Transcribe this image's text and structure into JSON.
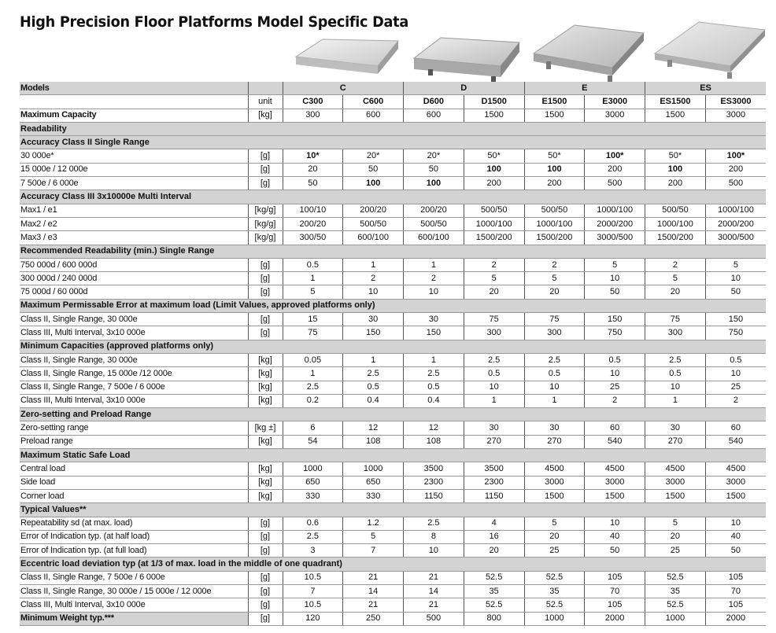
{
  "title": "High Precision Floor Platforms Model Specific Data",
  "header": {
    "models_label": "Models",
    "groups": [
      "C",
      "D",
      "E",
      "ES"
    ],
    "unit_label": "unit",
    "models": [
      "C300",
      "C600",
      "D600",
      "D1500",
      "E1500",
      "E3000",
      "ES1500",
      "ES3000"
    ]
  },
  "max_capacity": {
    "label": "Maximum Capacity",
    "unit": "[kg]",
    "values": [
      "300",
      "600",
      "600",
      "1500",
      "1500",
      "3000",
      "1500",
      "3000"
    ]
  },
  "sections": [
    {
      "heading": "Readability",
      "rows": []
    },
    {
      "heading": "Accuracy Class II Single Range",
      "rows": [
        {
          "label": "30 000e*",
          "unit": "[g]",
          "values": [
            "10*",
            "20*",
            "20*",
            "50*",
            "50*",
            "100*",
            "50*",
            "100*"
          ],
          "bold": [
            true,
            false,
            false,
            false,
            false,
            true,
            false,
            true
          ]
        },
        {
          "label": "15 000e / 12 000e",
          "unit": "[g]",
          "values": [
            "20",
            "50",
            "50",
            "100",
            "100",
            "200",
            "100",
            "200"
          ],
          "bold": [
            false,
            false,
            false,
            true,
            true,
            false,
            true,
            false
          ]
        },
        {
          "label": "7 500e / 6 000e",
          "unit": "[g]",
          "values": [
            "50",
            "100",
            "100",
            "200",
            "200",
            "500",
            "200",
            "500"
          ],
          "bold": [
            false,
            true,
            true,
            false,
            false,
            false,
            false,
            false
          ]
        }
      ]
    },
    {
      "heading": "Accuracy Class III 3x10000e Multi Interval",
      "rows": [
        {
          "label": "Max1 / e1",
          "unit": "[kg/g]",
          "values": [
            "100/10",
            "200/20",
            "200/20",
            "500/50",
            "500/50",
            "1000/100",
            "500/50",
            "1000/100"
          ]
        },
        {
          "label": "Max2 / e2",
          "unit": "[kg/g]",
          "values": [
            "200/20",
            "500/50",
            "500/50",
            "1000/100",
            "1000/100",
            "2000/200",
            "1000/100",
            "2000/200"
          ]
        },
        {
          "label": "Max3 / e3",
          "unit": "[kg/g]",
          "values": [
            "300/50",
            "600/100",
            "600/100",
            "1500/200",
            "1500/200",
            "3000/500",
            "1500/200",
            "3000/500"
          ]
        }
      ]
    },
    {
      "heading": "Recommended Readability (min.) Single Range",
      "rows": [
        {
          "label": "750 000d / 600 000d",
          "unit": "[g]",
          "values": [
            "0.5",
            "1",
            "1",
            "2",
            "2",
            "5",
            "2",
            "5"
          ]
        },
        {
          "label": "300 000d / 240 000d",
          "unit": "[g]",
          "values": [
            "1",
            "2",
            "2",
            "5",
            "5",
            "10",
            "5",
            "10"
          ]
        },
        {
          "label": "75 000d / 60 000d",
          "unit": "[g]",
          "values": [
            "5",
            "10",
            "10",
            "20",
            "20",
            "50",
            "20",
            "50"
          ]
        }
      ]
    },
    {
      "heading": "Maximum Permissable Error at maximum load (Limit Values, approved platforms only)",
      "rows": [
        {
          "label": "Class II, Single Range, 30 000e",
          "unit": "[g]",
          "values": [
            "15",
            "30",
            "30",
            "75",
            "75",
            "150",
            "75",
            "150"
          ]
        },
        {
          "label": "Class III, Multi Interval, 3x10 000e",
          "unit": "[g]",
          "values": [
            "75",
            "150",
            "150",
            "300",
            "300",
            "750",
            "300",
            "750"
          ]
        }
      ]
    },
    {
      "heading": "Minimum Capacities (approved platforms only)",
      "rows": [
        {
          "label": "Class II, Single Range, 30 000e",
          "unit": "[kg]",
          "values": [
            "0.05",
            "1",
            "1",
            "2.5",
            "2.5",
            "0.5",
            "2.5",
            "0.5"
          ]
        },
        {
          "label": "Class II, Single Range, 15 000e /12 000e",
          "unit": "[kg]",
          "values": [
            "1",
            "2.5",
            "2.5",
            "0.5",
            "0.5",
            "10",
            "0.5",
            "10"
          ]
        },
        {
          "label": "Class II, Single Range, 7 500e / 6 000e",
          "unit": "[kg]",
          "values": [
            "2.5",
            "0.5",
            "0.5",
            "10",
            "10",
            "25",
            "10",
            "25"
          ]
        },
        {
          "label": "Class III, Multi Interval, 3x10 000e",
          "unit": "[kg]",
          "values": [
            "0.2",
            "0.4",
            "0.4",
            "1",
            "1",
            "2",
            "1",
            "2"
          ]
        }
      ]
    },
    {
      "heading": "Zero-setting and Preload Range",
      "rows": [
        {
          "label": "Zero-setting range",
          "unit": "[kg ±]",
          "values": [
            "6",
            "12",
            "12",
            "30",
            "30",
            "60",
            "30",
            "60"
          ]
        },
        {
          "label": "Preload range",
          "unit": "[kg]",
          "values": [
            "54",
            "108",
            "108",
            "270",
            "270",
            "540",
            "270",
            "540"
          ]
        }
      ]
    },
    {
      "heading": "Maximum Static Safe Load",
      "rows": [
        {
          "label": "Central load",
          "unit": "[kg]",
          "values": [
            "1000",
            "1000",
            "3500",
            "3500",
            "4500",
            "4500",
            "4500",
            "4500"
          ]
        },
        {
          "label": "Side load",
          "unit": "[kg]",
          "values": [
            "650",
            "650",
            "2300",
            "2300",
            "3000",
            "3000",
            "3000",
            "3000"
          ]
        },
        {
          "label": "Corner load",
          "unit": "[kg]",
          "values": [
            "330",
            "330",
            "1150",
            "1150",
            "1500",
            "1500",
            "1500",
            "1500"
          ]
        }
      ]
    },
    {
      "heading": "Typical Values**",
      "rows": [
        {
          "label": "Repeatability sd (at max. load)",
          "unit": "[g]",
          "values": [
            "0.6",
            "1.2",
            "2.5",
            "4",
            "5",
            "10",
            "5",
            "10"
          ]
        },
        {
          "label": "Error of Indication typ. (at half load)",
          "unit": "[g]",
          "values": [
            "2.5",
            "5",
            "8",
            "16",
            "20",
            "40",
            "20",
            "40"
          ]
        },
        {
          "label": "Error of Indication typ. (at full load)",
          "unit": "[g]",
          "values": [
            "3",
            "7",
            "10",
            "20",
            "25",
            "50",
            "25",
            "50"
          ]
        }
      ]
    },
    {
      "heading": "Eccentric load deviation typ (at 1/3 of max. load in the middle of one quadrant)",
      "rows": [
        {
          "label": "Class II, Single Range, 7 500e / 6 000e",
          "unit": "[g]",
          "values": [
            "10.5",
            "21",
            "21",
            "52.5",
            "52.5",
            "105",
            "52.5",
            "105"
          ]
        },
        {
          "label": "Class II, Single Range, 30 000e / 15 000e / 12 000e",
          "unit": "[g]",
          "values": [
            "7",
            "14",
            "14",
            "35",
            "35",
            "70",
            "35",
            "70"
          ]
        },
        {
          "label": "Class III, Multi Interval, 3x10 000e",
          "unit": "[g]",
          "values": [
            "10.5",
            "21",
            "21",
            "52.5",
            "52.5",
            "105",
            "52.5",
            "105"
          ]
        }
      ]
    }
  ],
  "min_weight": {
    "label": "Minimum Weight typ.***",
    "unit": "[g]",
    "values": [
      "120",
      "250",
      "500",
      "800",
      "1000",
      "2000",
      "1000",
      "2000"
    ]
  },
  "colors": {
    "header_bg": "#d3d3d3",
    "grid": "#555555"
  }
}
